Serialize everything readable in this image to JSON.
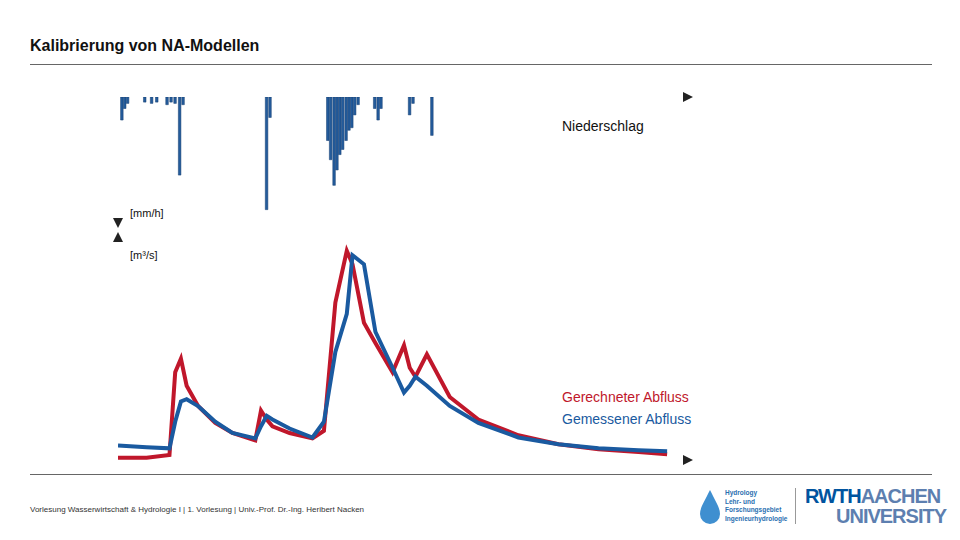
{
  "title": "Kalibrierung von NA-Modellen",
  "chart_data": [
    {
      "type": "bar",
      "y_label": "[mm/h]",
      "tick_labels": false,
      "grid": false,
      "xlim": [
        0,
        100
      ],
      "ylim": [
        0,
        100
      ],
      "x": [
        0.7,
        1.2,
        1.7,
        4.7,
        5.9,
        6.8,
        8.6,
        9.3,
        10,
        10.8,
        11.4,
        26,
        26.6,
        36.7,
        37.2,
        37.8,
        38.3,
        38.8,
        39.3,
        39.9,
        40.4,
        40.9,
        41.4,
        42,
        44.9,
        45.5,
        46,
        51,
        51.6,
        54.9
      ],
      "series": [
        {
          "name": "Niederschlag",
          "color": "#245c9c",
          "values": [
            18,
            9,
            5,
            4,
            5,
            4,
            6,
            4,
            5,
            61,
            6,
            88,
            16,
            34,
            49,
            69,
            57,
            45,
            41,
            34,
            26,
            24,
            14,
            6,
            9,
            18,
            9,
            14,
            5,
            30
          ]
        }
      ]
    },
    {
      "type": "line",
      "y_label": "[m³/s]",
      "tick_labels": false,
      "grid": false,
      "xlim": [
        0,
        100
      ],
      "ylim": [
        0,
        100
      ],
      "x": [
        0,
        5,
        9,
        10,
        11,
        12,
        14,
        17,
        20,
        24,
        25,
        26,
        27,
        30,
        34,
        36,
        38,
        40,
        41,
        43,
        45,
        48,
        50,
        51,
        52,
        54,
        58,
        63,
        70,
        77,
        84,
        91,
        96
      ],
      "series": [
        {
          "name": "Gerechneter Abfluss",
          "color": "#c0172b",
          "line_style": "solid",
          "values": [
            1,
            1,
            2.2,
            39,
            45,
            33,
            24,
            16.5,
            12,
            8.7,
            22,
            18,
            15,
            12,
            9.6,
            13,
            70,
            93,
            87,
            61,
            52,
            39,
            51,
            41,
            37,
            47,
            28,
            18,
            11,
            7,
            4.8,
            3.5,
            2.6
          ]
        },
        {
          "name": "Gemessener Abfluss",
          "color": "#1a5aa0",
          "line_style": "solid",
          "values": [
            6.5,
            5.7,
            5.2,
            17,
            26,
            27,
            24,
            17,
            12,
            9.6,
            15,
            19.6,
            18,
            14,
            10,
            17,
            48,
            65,
            91,
            87,
            57,
            41,
            30,
            33,
            37,
            33,
            24,
            16.5,
            10,
            7,
            5.2,
            4.3,
            3.9
          ]
        }
      ]
    }
  ],
  "footer": "Vorlesung Wasserwirtschaft & Hydrologie I | 1. Vorlesung | Univ.-Prof. Dr.-Ing. Heribert Nacken",
  "logos": {
    "hydrology": [
      "Hydrology",
      "Lehr- und",
      "Forschungsgebiet",
      "Ingenieurhydrologie"
    ],
    "rwth": [
      "RWTH",
      "AACHEN",
      "UNIVERSITY"
    ]
  }
}
